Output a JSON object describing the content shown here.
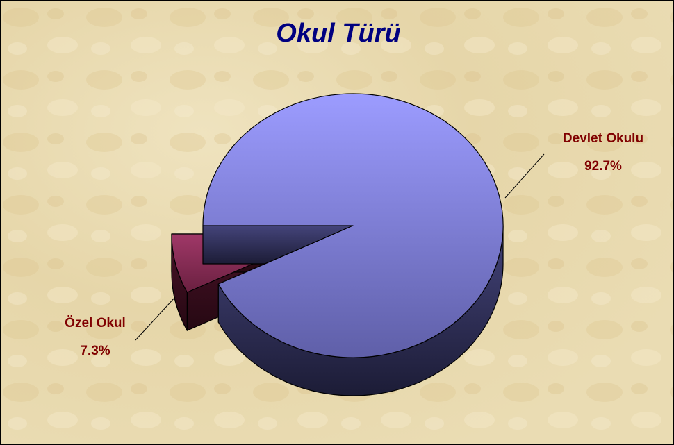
{
  "chart_data": {
    "type": "pie3d",
    "title": "Okul Türü",
    "categories": [
      "Devlet Okulu",
      "Özel Okul"
    ],
    "values": [
      92.7,
      7.3
    ],
    "value_labels": [
      "92.7%",
      "7.3%"
    ],
    "colors": [
      "#9999ff",
      "#993366"
    ]
  }
}
